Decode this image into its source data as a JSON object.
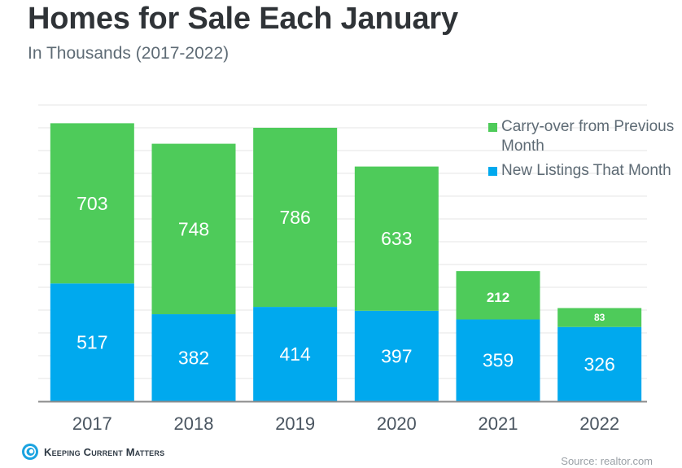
{
  "header": {
    "title": "Homes for Sale Each January",
    "subtitle": "In Thousands (2017-2022)"
  },
  "footer": {
    "brand": "Keeping Current Matters",
    "source": "Source: realtor.com"
  },
  "colors": {
    "carryover": "#4ecb5a",
    "new_listings": "#00a9ee",
    "grid": "#e6e6e6",
    "axis": "#8c8c8c"
  },
  "chart_data": {
    "type": "bar",
    "stacked": true,
    "title": "Homes for Sale Each January",
    "subtitle": "In Thousands (2017-2022)",
    "xlabel": "",
    "ylabel": "",
    "categories": [
      "2017",
      "2018",
      "2019",
      "2020",
      "2021",
      "2022"
    ],
    "series": [
      {
        "name": "New Listings That Month",
        "values": [
          517,
          382,
          414,
          397,
          359,
          326
        ]
      },
      {
        "name": "Carry-over from Previous Month",
        "values": [
          703,
          748,
          786,
          633,
          212,
          83
        ]
      }
    ],
    "ylim": [
      0,
      1300
    ],
    "grid": true,
    "grid_step": 100,
    "y_tick_labels_shown": false,
    "legend": {
      "position": "top-right",
      "entries": [
        "Carry-over from Previous Month",
        "New Listings That Month"
      ]
    }
  }
}
